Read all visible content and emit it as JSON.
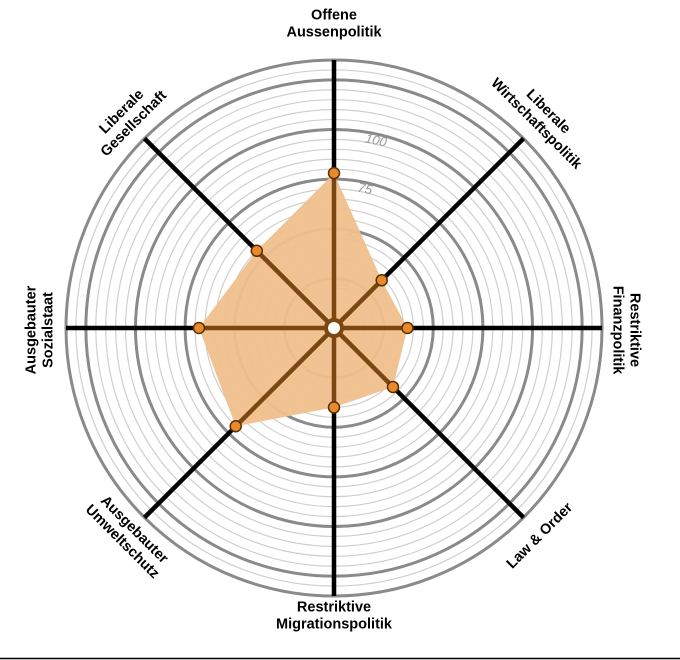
{
  "chart_data": {
    "type": "radar",
    "axes": [
      {
        "label_lines": [
          "Offene",
          "Aussenpolitik"
        ],
        "value": 78
      },
      {
        "label_lines": [
          "Liberale",
          "Wirtschaftspolitik"
        ],
        "value": 34
      },
      {
        "label_lines": [
          "Restriktive",
          "Finanzpolitik"
        ],
        "value": 37
      },
      {
        "label_lines": [
          "Law & Order"
        ],
        "value": 42
      },
      {
        "label_lines": [
          "Restriktive",
          "Migrationspolitik"
        ],
        "value": 40
      },
      {
        "label_lines": [
          "Ausgebauter",
          "Umweltschutz"
        ],
        "value": 70
      },
      {
        "label_lines": [
          "Ausgebauter",
          "Sozialstaat"
        ],
        "value": 68
      },
      {
        "label_lines": [
          "Liberale",
          "Gesellschaft"
        ],
        "value": 55
      }
    ],
    "rmax": 100,
    "ticks": [
      25,
      50,
      75,
      100
    ],
    "tick_labels": [
      "25",
      "50",
      "75",
      "100"
    ],
    "colors": {
      "fill": "#f0c08c",
      "point": "#e8892c",
      "point_stroke": "#5a3000",
      "spoke": "#000000",
      "spoke_inside": "#7a4712",
      "major_ring": "#8a8a8a",
      "minor_ring": "#cfcfcf"
    }
  }
}
